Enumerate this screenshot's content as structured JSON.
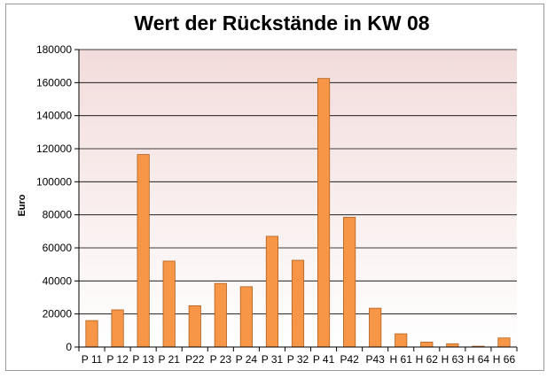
{
  "chart_data": {
    "type": "bar",
    "title": "Wert der Rückstände in KW 08",
    "xlabel": "",
    "ylabel": "Euro",
    "ylim": [
      0,
      180000
    ],
    "yticks": [
      0,
      20000,
      40000,
      60000,
      80000,
      100000,
      120000,
      140000,
      160000,
      180000
    ],
    "grid": true,
    "legend": "none",
    "colors": {
      "bar_fill": "#f79646",
      "bar_stroke": "#b0601e",
      "plot_background_top": "#f2dcdb",
      "plot_background_bottom": "#ffffff",
      "gridline": "#000000"
    },
    "categories": [
      "P 11",
      "P 12",
      "P 13",
      "P 21",
      "P22",
      "P 23",
      "P 24",
      "P 31",
      "P 32",
      "P 41",
      "P42",
      "P43",
      "H 61",
      "H 62",
      "H 63",
      "H 64",
      "H 66"
    ],
    "values": [
      16000,
      22500,
      116500,
      52000,
      25000,
      38500,
      36500,
      67000,
      52500,
      162500,
      78500,
      23500,
      8000,
      3000,
      2000,
      500,
      5500
    ]
  }
}
